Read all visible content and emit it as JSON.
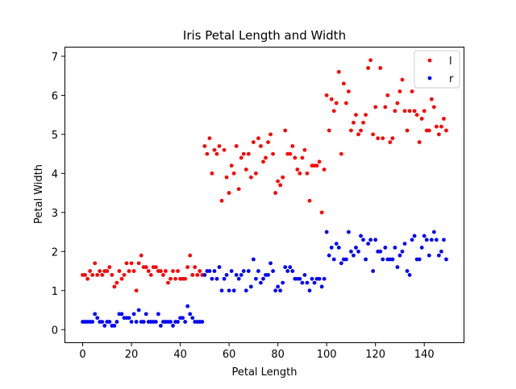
{
  "chart_data": {
    "type": "scatter",
    "title": "Iris Petal Length and Width",
    "xlabel": "Petal Length",
    "ylabel": "Petal Width",
    "xlim": [
      -7.45,
      156.45
    ],
    "ylim": [
      -0.345,
      7.245
    ],
    "xticks": [
      0,
      20,
      40,
      60,
      80,
      100,
      120,
      140
    ],
    "yticks": [
      0,
      1,
      2,
      3,
      4,
      5,
      6,
      7
    ],
    "grid": false,
    "legend_position": "top-right",
    "series": [
      {
        "name": "l",
        "color": "#ff0000",
        "x": [
          0,
          1,
          2,
          3,
          4,
          5,
          6,
          7,
          8,
          9,
          10,
          11,
          12,
          13,
          14,
          15,
          16,
          17,
          18,
          19,
          20,
          21,
          22,
          23,
          24,
          25,
          26,
          27,
          28,
          29,
          30,
          31,
          32,
          33,
          34,
          35,
          36,
          37,
          38,
          39,
          40,
          41,
          42,
          43,
          44,
          45,
          46,
          47,
          48,
          49,
          50,
          51,
          52,
          53,
          54,
          55,
          56,
          57,
          58,
          59,
          60,
          61,
          62,
          63,
          64,
          65,
          66,
          67,
          68,
          69,
          70,
          71,
          72,
          73,
          74,
          75,
          76,
          77,
          78,
          79,
          80,
          81,
          82,
          83,
          84,
          85,
          86,
          87,
          88,
          89,
          90,
          91,
          92,
          93,
          94,
          95,
          96,
          97,
          98,
          99,
          100,
          101,
          102,
          103,
          104,
          105,
          106,
          107,
          108,
          109,
          110,
          111,
          112,
          113,
          114,
          115,
          116,
          117,
          118,
          119,
          120,
          121,
          122,
          123,
          124,
          125,
          126,
          127,
          128,
          129,
          130,
          131,
          132,
          133,
          134,
          135,
          136,
          137,
          138,
          139,
          140,
          141,
          142,
          143,
          144,
          145,
          146,
          147,
          148,
          149
        ],
        "y": [
          1.4,
          1.4,
          1.3,
          1.5,
          1.4,
          1.7,
          1.4,
          1.5,
          1.4,
          1.5,
          1.5,
          1.6,
          1.4,
          1.1,
          1.2,
          1.5,
          1.3,
          1.4,
          1.7,
          1.5,
          1.7,
          1.5,
          1.0,
          1.7,
          1.9,
          1.6,
          1.6,
          1.5,
          1.4,
          1.6,
          1.6,
          1.5,
          1.5,
          1.4,
          1.5,
          1.2,
          1.3,
          1.5,
          1.3,
          1.5,
          1.3,
          1.3,
          1.3,
          1.6,
          1.9,
          1.4,
          1.6,
          1.4,
          1.5,
          1.4,
          4.7,
          4.5,
          4.9,
          4.0,
          4.6,
          4.5,
          4.7,
          3.3,
          4.6,
          3.9,
          3.5,
          4.2,
          4.0,
          4.7,
          3.6,
          4.4,
          4.5,
          4.1,
          4.5,
          3.9,
          4.8,
          4.0,
          4.9,
          4.7,
          4.3,
          4.4,
          4.8,
          5.0,
          4.5,
          3.5,
          3.8,
          3.7,
          3.9,
          5.1,
          4.5,
          4.5,
          4.7,
          4.4,
          4.1,
          4.0,
          4.4,
          4.6,
          4.0,
          3.3,
          4.2,
          4.2,
          4.2,
          4.3,
          3.0,
          4.1,
          6.0,
          5.1,
          5.9,
          5.6,
          5.8,
          6.6,
          4.5,
          6.3,
          5.8,
          6.1,
          5.1,
          5.3,
          5.5,
          5.0,
          5.1,
          5.3,
          5.5,
          6.7,
          6.9,
          5.0,
          5.7,
          4.9,
          6.7,
          4.9,
          5.7,
          6.0,
          4.8,
          4.9,
          5.6,
          5.8,
          6.1,
          6.4,
          5.6,
          5.1,
          5.6,
          6.1,
          5.6,
          5.5,
          4.8,
          5.4,
          5.6,
          5.1,
          5.1,
          5.9,
          5.7,
          5.2,
          5.0,
          5.2,
          5.4,
          5.1
        ]
      },
      {
        "name": "r",
        "color": "#0000ff",
        "x": [
          0,
          1,
          2,
          3,
          4,
          5,
          6,
          7,
          8,
          9,
          10,
          11,
          12,
          13,
          14,
          15,
          16,
          17,
          18,
          19,
          20,
          21,
          22,
          23,
          24,
          25,
          26,
          27,
          28,
          29,
          30,
          31,
          32,
          33,
          34,
          35,
          36,
          37,
          38,
          39,
          40,
          41,
          42,
          43,
          44,
          45,
          46,
          47,
          48,
          49,
          50,
          51,
          52,
          53,
          54,
          55,
          56,
          57,
          58,
          59,
          60,
          61,
          62,
          63,
          64,
          65,
          66,
          67,
          68,
          69,
          70,
          71,
          72,
          73,
          74,
          75,
          76,
          77,
          78,
          79,
          80,
          81,
          82,
          83,
          84,
          85,
          86,
          87,
          88,
          89,
          90,
          91,
          92,
          93,
          94,
          95,
          96,
          97,
          98,
          99,
          100,
          101,
          102,
          103,
          104,
          105,
          106,
          107,
          108,
          109,
          110,
          111,
          112,
          113,
          114,
          115,
          116,
          117,
          118,
          119,
          120,
          121,
          122,
          123,
          124,
          125,
          126,
          127,
          128,
          129,
          130,
          131,
          132,
          133,
          134,
          135,
          136,
          137,
          138,
          139,
          140,
          141,
          142,
          143,
          144,
          145,
          146,
          147,
          148,
          149
        ],
        "y": [
          0.2,
          0.2,
          0.2,
          0.2,
          0.2,
          0.4,
          0.3,
          0.2,
          0.2,
          0.1,
          0.2,
          0.2,
          0.1,
          0.1,
          0.2,
          0.4,
          0.4,
          0.3,
          0.3,
          0.3,
          0.2,
          0.4,
          0.2,
          0.5,
          0.2,
          0.2,
          0.4,
          0.2,
          0.2,
          0.2,
          0.2,
          0.4,
          0.1,
          0.2,
          0.2,
          0.2,
          0.2,
          0.1,
          0.2,
          0.2,
          0.3,
          0.3,
          0.2,
          0.6,
          0.4,
          0.3,
          0.2,
          0.2,
          0.2,
          0.2,
          1.4,
          1.5,
          1.5,
          1.3,
          1.5,
          1.3,
          1.6,
          1.0,
          1.3,
          1.4,
          1.0,
          1.5,
          1.0,
          1.4,
          1.3,
          1.4,
          1.5,
          1.0,
          1.5,
          1.1,
          1.8,
          1.3,
          1.5,
          1.2,
          1.3,
          1.4,
          1.4,
          1.7,
          1.5,
          1.0,
          1.1,
          1.0,
          1.2,
          1.6,
          1.5,
          1.6,
          1.5,
          1.3,
          1.3,
          1.3,
          1.2,
          1.4,
          1.2,
          1.0,
          1.3,
          1.2,
          1.3,
          1.3,
          1.1,
          1.3,
          2.5,
          1.9,
          2.1,
          1.8,
          2.2,
          2.1,
          1.7,
          1.8,
          1.8,
          2.5,
          2.0,
          1.9,
          2.1,
          2.0,
          2.4,
          2.3,
          1.8,
          2.2,
          2.3,
          1.5,
          2.3,
          2.0,
          2.0,
          1.8,
          2.1,
          1.8,
          1.8,
          1.8,
          2.1,
          1.6,
          1.9,
          2.0,
          2.2,
          1.5,
          1.4,
          2.3,
          2.4,
          1.8,
          1.8,
          2.1,
          2.4,
          2.3,
          1.9,
          2.3,
          2.5,
          2.3,
          1.9,
          2.0,
          2.3,
          1.8
        ]
      }
    ]
  }
}
